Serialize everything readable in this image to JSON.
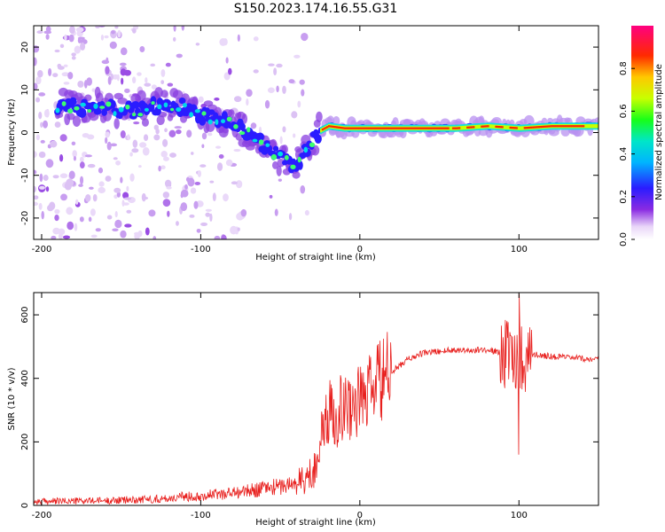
{
  "title": "S150.2023.174.16.55.G31",
  "colors": {
    "snr_line": "#e8201e",
    "axis": "#000000",
    "ridge": "#e8201e"
  },
  "chart_data": [
    {
      "type": "heatmap",
      "xlabel": "Height of straight line (km)",
      "ylabel": "Frequency (Hz)",
      "xlim": [
        -205,
        150
      ],
      "ylim": [
        -25,
        25
      ],
      "xticks": [
        -200,
        -100,
        0,
        100
      ],
      "yticks": [
        -20,
        -10,
        0,
        10,
        20
      ],
      "colorbar": {
        "label": "Normalized spectral amplitude",
        "range": [
          0,
          1
        ],
        "ticks": [
          "0.0",
          "0.2",
          "0.4",
          "0.6",
          "0.8"
        ],
        "colormap": "rainbow (white → purple → blue → cyan → green → yellow → red → magenta)"
      },
      "ridge": {
        "x": [
          -190,
          -175,
          -160,
          -150,
          -140,
          -130,
          -120,
          -110,
          -100,
          -90,
          -80,
          -70,
          -60,
          -50,
          -40,
          -35,
          -30,
          -25,
          -20,
          -10,
          0,
          20,
          40,
          60,
          80,
          100,
          120,
          150
        ],
        "freq": [
          6,
          6,
          6,
          5,
          5,
          6,
          6,
          6,
          4,
          3,
          2,
          0,
          -3,
          -6,
          -8,
          -5,
          -2,
          0.5,
          1.5,
          1,
          1,
          1,
          1,
          1,
          1.5,
          1,
          1.5,
          1.5
        ]
      }
    },
    {
      "type": "line",
      "xlabel": "Height of straight line (km)",
      "ylabel": "SNR (10 * v/v)",
      "xlim": [
        -205,
        150
      ],
      "ylim": [
        0,
        670
      ],
      "xticks": [
        -200,
        -100,
        0,
        100
      ],
      "yticks": [
        0,
        200,
        400,
        600
      ],
      "series": [
        {
          "x": [
            -205,
            -180,
            -160,
            -140,
            -120,
            -110,
            -100,
            -90,
            -80,
            -70,
            -60,
            -50,
            -45,
            -40,
            -35,
            -30,
            -27,
            -25,
            -22,
            -20,
            -18,
            -15,
            -12,
            -10,
            -5,
            0,
            5,
            10,
            15,
            20,
            25,
            30,
            40,
            50,
            60,
            70,
            80,
            85,
            90,
            95,
            98,
            100,
            102,
            105,
            110,
            120,
            130,
            140,
            150
          ],
          "y": [
            12,
            14,
            15,
            18,
            22,
            28,
            30,
            35,
            40,
            45,
            55,
            60,
            65,
            70,
            80,
            100,
            150,
            200,
            250,
            280,
            300,
            280,
            320,
            300,
            320,
            330,
            350,
            380,
            400,
            420,
            440,
            460,
            480,
            485,
            490,
            488,
            490,
            485,
            480,
            470,
            460,
            480,
            460,
            470,
            475,
            470,
            465,
            462,
            460
          ]
        }
      ]
    }
  ]
}
